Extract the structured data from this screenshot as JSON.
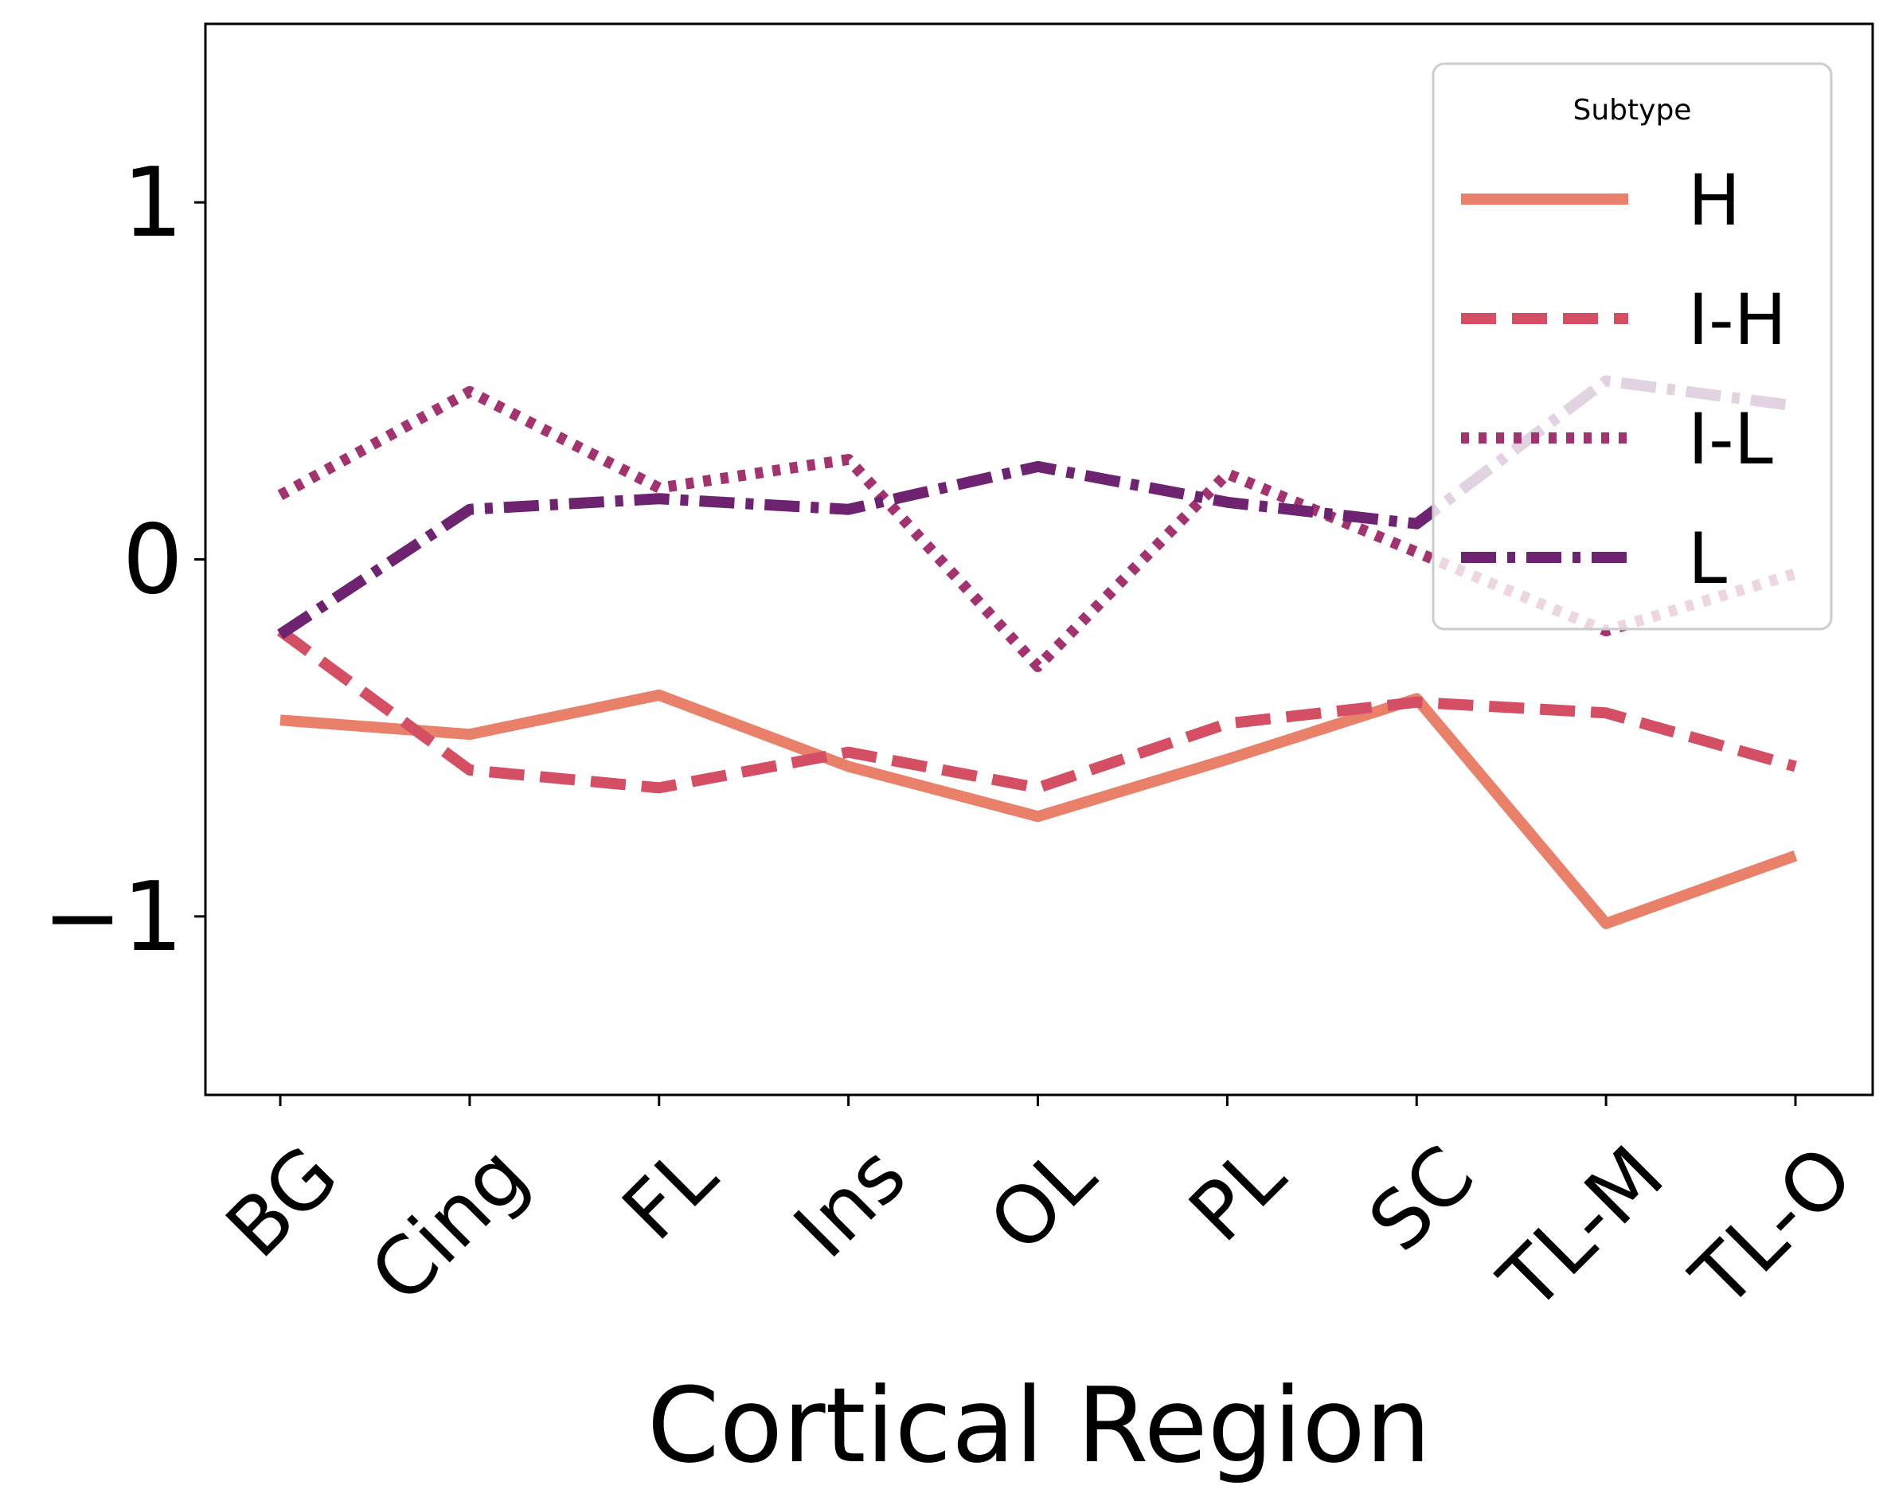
{
  "chart_data": {
    "type": "line",
    "categories": [
      "BG",
      "Cing",
      "FL",
      "Ins",
      "OL",
      "PL",
      "SC",
      "TL-M",
      "TL-O"
    ],
    "xlabel": "Cortical Region",
    "ylabel": "",
    "ylim": [
      -1.5,
      1.5
    ],
    "yticks": [
      {
        "value": 1,
        "label": "1"
      },
      {
        "value": 0,
        "label": "0"
      },
      {
        "value": -1,
        "label": "−1"
      }
    ],
    "grid": false,
    "legend": {
      "title": "Subtype",
      "placement": "top-right"
    },
    "series": [
      {
        "name": "H",
        "color": "#e8806a",
        "dash": "solid",
        "values": [
          -0.45,
          -0.49,
          -0.38,
          -0.58,
          -0.72,
          -0.56,
          -0.39,
          -1.02,
          -0.83
        ]
      },
      {
        "name": "I-H",
        "color": "#d44f64",
        "dash": "dashed",
        "values": [
          -0.2,
          -0.59,
          -0.64,
          -0.54,
          -0.64,
          -0.46,
          -0.4,
          -0.43,
          -0.58
        ]
      },
      {
        "name": "I-L",
        "color": "#a3336f",
        "dash": "dotted",
        "values": [
          0.18,
          0.47,
          0.2,
          0.28,
          -0.3,
          0.24,
          0.02,
          -0.2,
          -0.04
        ]
      },
      {
        "name": "L",
        "color": "#6e2370",
        "dash": "dashdot",
        "values": [
          -0.21,
          0.14,
          0.17,
          0.14,
          0.26,
          0.16,
          0.1,
          0.5,
          0.43
        ]
      }
    ]
  }
}
